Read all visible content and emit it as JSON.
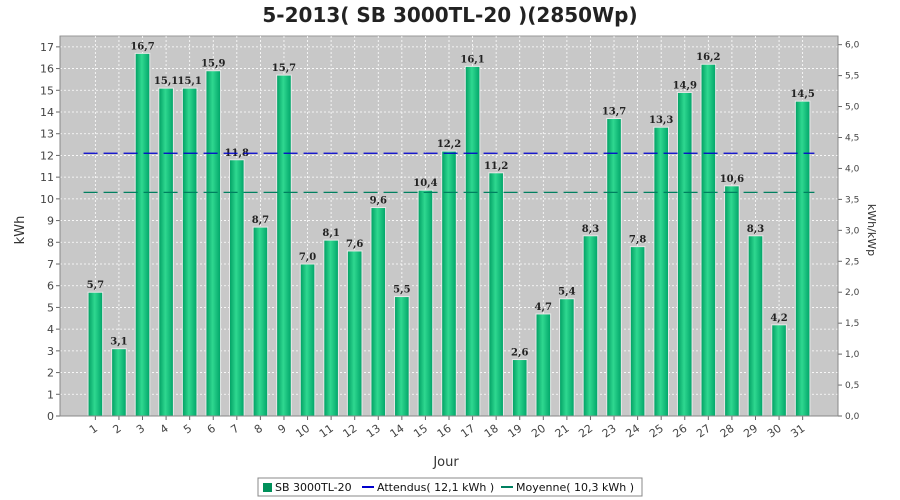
{
  "colors": {
    "bar_fill": "#00b070",
    "bar_light": "#4be0a0",
    "bar_dark": "#00905a",
    "plot_bg": "#c8c8c8",
    "expected_line": "#0000cc",
    "average_line": "#008060"
  },
  "chart_data": {
    "type": "bar",
    "title": "5-2013( SB 3000TL-20 )(2850Wp)",
    "xlabel": "Jour",
    "ylabel": "kWh",
    "ylabel_right": "kWh/kWp",
    "ylim": [
      0,
      17.5
    ],
    "ylim_right": [
      0,
      6.14
    ],
    "yticks": [
      0,
      1,
      2,
      3,
      4,
      5,
      6,
      7,
      8,
      9,
      10,
      11,
      12,
      13,
      14,
      15,
      16,
      17
    ],
    "yticks_right": [
      "0,0",
      "0,5",
      "1,0",
      "1,5",
      "2,0",
      "2,5",
      "3,0",
      "3,5",
      "4,0",
      "4,5",
      "5,0",
      "5,5",
      "6,0"
    ],
    "grid": true,
    "legend_position": "bottom",
    "categories": [
      "1",
      "2",
      "3",
      "4",
      "5",
      "6",
      "7",
      "8",
      "9",
      "10",
      "11",
      "12",
      "13",
      "14",
      "15",
      "16",
      "17",
      "18",
      "19",
      "20",
      "21",
      "22",
      "23",
      "24",
      "25",
      "26",
      "27",
      "28",
      "29",
      "30",
      "31"
    ],
    "series": [
      {
        "name": "SB 3000TL-20",
        "values": [
          5.7,
          3.1,
          16.7,
          15.1,
          15.1,
          15.9,
          11.8,
          8.7,
          15.7,
          7.0,
          8.1,
          7.6,
          9.6,
          5.5,
          10.4,
          12.2,
          16.1,
          11.2,
          2.6,
          4.7,
          5.4,
          8.3,
          13.7,
          7.8,
          13.3,
          14.9,
          16.2,
          10.6,
          8.3,
          4.2,
          14.5
        ],
        "labels": [
          "5,7",
          "3,1",
          "16,7",
          "15,1",
          "15,1",
          "15,9",
          "11,8",
          "8,7",
          "15,7",
          "7,0",
          "8,1",
          "7,6",
          "9,6",
          "5,5",
          "10,4",
          "12,2",
          "16,1",
          "11,2",
          "2,6",
          "4,7",
          "5,4",
          "8,3",
          "13,7",
          "7,8",
          "13,3",
          "14,9",
          "16,2",
          "10,6",
          "8,3",
          "4,2",
          "14,5"
        ]
      }
    ],
    "reference_lines": [
      {
        "name": "Attendus( 12,1 kWh )",
        "value": 12.1,
        "style": "dashed"
      },
      {
        "name": "Moyenne( 10,3 kWh )",
        "value": 10.3,
        "style": "dashed"
      }
    ]
  }
}
